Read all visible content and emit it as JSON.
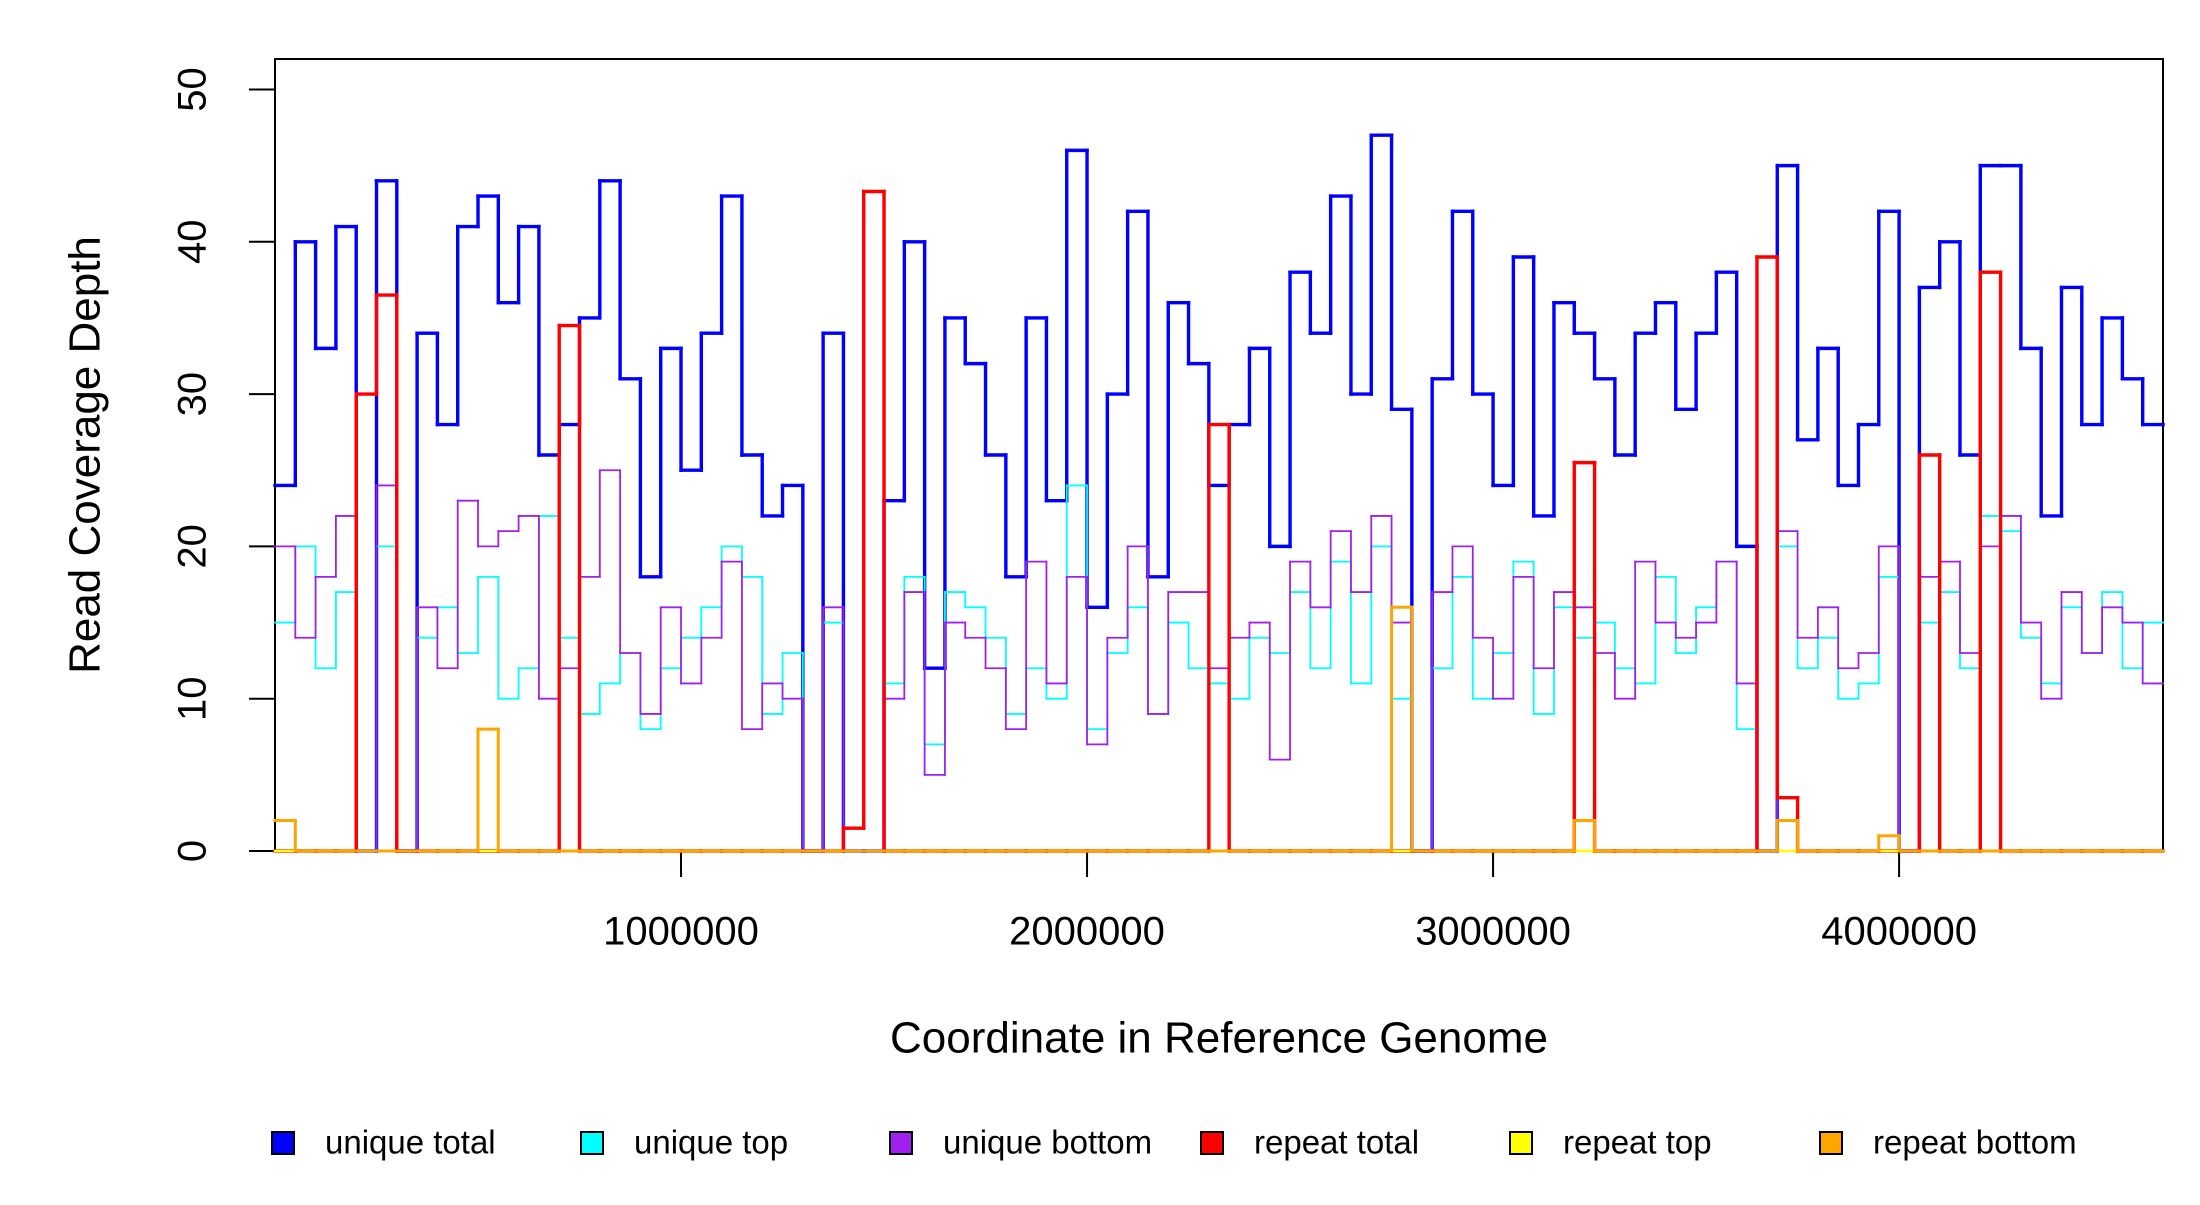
{
  "chart_data": {
    "type": "step",
    "x_label": "Coordinate in Reference Genome",
    "y_label": "Read Coverage Depth",
    "x": [
      0,
      50000,
      100000,
      150000,
      200000,
      250000,
      300000,
      350000,
      400000,
      450000,
      500000,
      550000,
      600000,
      650000,
      700000,
      750000,
      800000,
      850000,
      900000,
      950000,
      1000000,
      1050000,
      1100000,
      1150000,
      1200000,
      1250000,
      1300000,
      1350000,
      1400000,
      1450000,
      1500000,
      1550000,
      1600000,
      1650000,
      1700000,
      1750000,
      1800000,
      1850000,
      1900000,
      1950000,
      2000000,
      2050000,
      2100000,
      2150000,
      2200000,
      2250000,
      2300000,
      2350000,
      2400000,
      2450000,
      2500000,
      2550000,
      2600000,
      2650000,
      2700000,
      2750000,
      2800000,
      2850000,
      2900000,
      2950000,
      3000000,
      3050000,
      3100000,
      3150000,
      3200000,
      3250000,
      3300000,
      3350000,
      3400000,
      3450000,
      3500000,
      3550000,
      3600000,
      3650000,
      3700000,
      3750000,
      3800000,
      3850000,
      3900000,
      3950000,
      4000000,
      4050000,
      4100000,
      4150000,
      4200000,
      4250000,
      4300000,
      4350000,
      4400000,
      4450000,
      4500000,
      4550000,
      4600000
    ],
    "series": [
      {
        "name": "unique total",
        "color": "#0000ff",
        "width": 3.4,
        "values": [
          24,
          40,
          33,
          41,
          0,
          44,
          0,
          34,
          28,
          41,
          43,
          36,
          41,
          26,
          28,
          35,
          44,
          31,
          18,
          33,
          25,
          34,
          43,
          26,
          22,
          24,
          0,
          34,
          0,
          0,
          23,
          40,
          12,
          35,
          32,
          26,
          18,
          35,
          23,
          46,
          16,
          30,
          42,
          18,
          36,
          32,
          24,
          28,
          33,
          20,
          38,
          34,
          43,
          30,
          47,
          29,
          0,
          31,
          42,
          30,
          24,
          39,
          22,
          36,
          34,
          31,
          26,
          34,
          36,
          29,
          34,
          38,
          20,
          0,
          45,
          27,
          33,
          24,
          28,
          42,
          0,
          37,
          40,
          26,
          45,
          45,
          33,
          22,
          37,
          28,
          35,
          31,
          28
        ]
      },
      {
        "name": "unique top",
        "color": "#00ffff",
        "width": 1.8,
        "values": [
          15,
          20,
          12,
          17,
          0,
          20,
          0,
          14,
          16,
          13,
          18,
          10,
          12,
          22,
          14,
          9,
          11,
          13,
          8,
          12,
          14,
          16,
          20,
          18,
          9,
          13,
          0,
          15,
          0,
          0,
          11,
          18,
          7,
          17,
          16,
          14,
          9,
          12,
          10,
          24,
          8,
          13,
          16,
          9,
          15,
          12,
          11,
          10,
          14,
          13,
          17,
          12,
          19,
          11,
          20,
          10,
          0,
          12,
          18,
          10,
          13,
          19,
          9,
          16,
          14,
          15,
          12,
          11,
          18,
          13,
          16,
          19,
          8,
          0,
          20,
          12,
          14,
          10,
          11,
          18,
          0,
          15,
          17,
          12,
          22,
          21,
          14,
          11,
          16,
          13,
          17,
          12,
          15
        ]
      },
      {
        "name": "unique bottom",
        "color": "#a020f0",
        "width": 1.8,
        "values": [
          20,
          14,
          18,
          22,
          0,
          24,
          0,
          16,
          12,
          23,
          20,
          21,
          22,
          10,
          12,
          18,
          25,
          13,
          9,
          16,
          11,
          14,
          19,
          8,
          11,
          10,
          0,
          16,
          0,
          0,
          10,
          17,
          5,
          15,
          14,
          12,
          8,
          19,
          11,
          18,
          7,
          14,
          20,
          9,
          17,
          17,
          12,
          14,
          15,
          6,
          19,
          16,
          21,
          17,
          22,
          15,
          0,
          17,
          20,
          14,
          10,
          18,
          12,
          17,
          16,
          13,
          10,
          19,
          15,
          14,
          15,
          19,
          11,
          0,
          21,
          14,
          16,
          12,
          13,
          20,
          0,
          18,
          19,
          13,
          20,
          22,
          15,
          10,
          17,
          13,
          16,
          15,
          11
        ]
      },
      {
        "name": "repeat total",
        "color": "#ff0000",
        "width": 3.4,
        "values": [
          0,
          0,
          0,
          0,
          30,
          36.5,
          0,
          0,
          0,
          0,
          0,
          0,
          0,
          0,
          34.5,
          0,
          0,
          0,
          0,
          0,
          0,
          0,
          0,
          0,
          0,
          0,
          0,
          0,
          1.5,
          43.3,
          0,
          0,
          0,
          0,
          0,
          0,
          0,
          0,
          0,
          0,
          0,
          0,
          0,
          0,
          0,
          0,
          28,
          0,
          0,
          0,
          0,
          0,
          0,
          0,
          0,
          0,
          0,
          0,
          0,
          0,
          0,
          0,
          0,
          0,
          25.5,
          0,
          0,
          0,
          0,
          0,
          0,
          0,
          0,
          39,
          3.5,
          0,
          0,
          0,
          0,
          0,
          0,
          26,
          0,
          0,
          38,
          0,
          0,
          0,
          0,
          0,
          0,
          0,
          0
        ]
      },
      {
        "name": "repeat top",
        "color": "#ffff00",
        "width": 2.4,
        "values": [
          0,
          0,
          0,
          0,
          0,
          0,
          0,
          0,
          0,
          0,
          0,
          0,
          0,
          0,
          0,
          0,
          0,
          0,
          0,
          0,
          0,
          0,
          0,
          0,
          0,
          0,
          0,
          0,
          0,
          0,
          0,
          0,
          0,
          0,
          0,
          0,
          0,
          0,
          0,
          0,
          0,
          0,
          0,
          0,
          0,
          0,
          0,
          0,
          0,
          0,
          0,
          0,
          0,
          0,
          0,
          0,
          0,
          0,
          0,
          0,
          0,
          0,
          0,
          0,
          0,
          0,
          0,
          0,
          0,
          0,
          0,
          0,
          0,
          0,
          0,
          0,
          0,
          0,
          0,
          0,
          0,
          0,
          0,
          0,
          0,
          0,
          0,
          0,
          0,
          0,
          0,
          0,
          0
        ]
      },
      {
        "name": "repeat bottom",
        "color": "#ffa500",
        "width": 3,
        "values": [
          2,
          0,
          0,
          0,
          0,
          0,
          0,
          0,
          0,
          0,
          8,
          0,
          0,
          0,
          0,
          0,
          0,
          0,
          0,
          0,
          0,
          0,
          0,
          0,
          0,
          0,
          0,
          0,
          0,
          0,
          0,
          0,
          0,
          0,
          0,
          0,
          0,
          0,
          0,
          0,
          0,
          0,
          0,
          0,
          0,
          0,
          0,
          0,
          0,
          0,
          0,
          0,
          0,
          0,
          0,
          16,
          0,
          0,
          0,
          0,
          0,
          0,
          0,
          0,
          2,
          0,
          0,
          0,
          0,
          0,
          0,
          0,
          0,
          0,
          2,
          0,
          0,
          0,
          0,
          1,
          0,
          0,
          0,
          0,
          0,
          0,
          0,
          0,
          0,
          0,
          0,
          0,
          0
        ]
      }
    ],
    "xlim": [
      0,
      4650000
    ],
    "ylim": [
      0,
      52
    ],
    "xticks": [
      1000000,
      2000000,
      3000000,
      4000000
    ],
    "yticks": [
      0,
      10,
      20,
      30,
      40,
      50
    ],
    "legend": "bottom"
  }
}
